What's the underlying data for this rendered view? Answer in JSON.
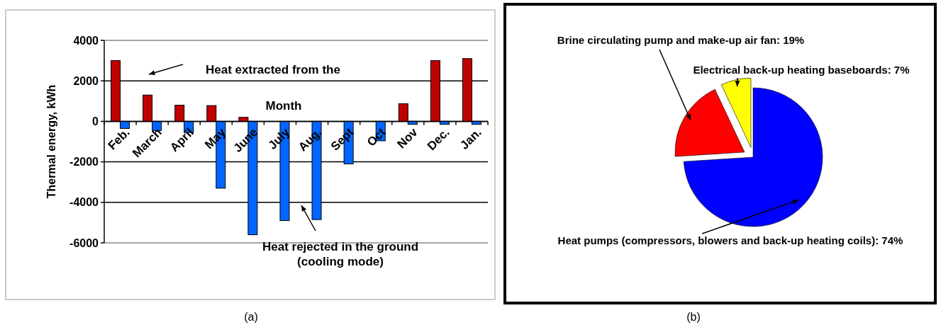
{
  "chart_data": [
    {
      "type": "bar",
      "ylabel": "Thermal energy, kWh",
      "xlabel": "Month",
      "categories": [
        "Feb.",
        "March",
        "April",
        "May",
        "June",
        "July",
        "Aug.",
        "Sept",
        "Oct",
        "Nov",
        "Dec.",
        "Jan."
      ],
      "series": [
        {
          "color": "#c00000",
          "values": [
            3000,
            1300,
            800,
            780,
            200,
            0,
            null,
            0,
            null,
            870,
            3000,
            3100
          ]
        },
        {
          "color": "#0066ff",
          "values": [
            -350,
            -450,
            -550,
            -3300,
            -5600,
            -4900,
            -4850,
            -2100,
            -960,
            -150,
            -150,
            -150
          ]
        }
      ],
      "ylim": [
        -6000,
        4000
      ],
      "yticks": [
        -6000,
        -4000,
        -2000,
        0,
        2000,
        4000
      ],
      "grid": "y",
      "annotations": [
        "Heat extracted from the",
        "Heat rejected in the ground\n(cooling mode)",
        "(a)"
      ]
    },
    {
      "type": "pie",
      "categories": [
        "Heat pumps (compressors, blowers and back-up heating coils)",
        "Brine circulating pump and make-up air fan",
        "Electrical back-up heating baseboards"
      ],
      "values": [
        74,
        19,
        7
      ],
      "colors": [
        "#0000ff",
        "#ff0000",
        "#ffff00"
      ],
      "value_labels": [
        "74%",
        "19%",
        "7%"
      ],
      "annotations": [
        "(b)"
      ]
    }
  ]
}
